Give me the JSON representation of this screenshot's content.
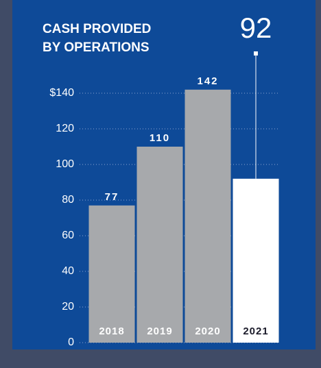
{
  "chart_data": {
    "type": "bar",
    "title": [
      "CASH PROVIDED",
      "BY OPERATIONS"
    ],
    "categories": [
      "2018",
      "2019",
      "2020",
      "2021"
    ],
    "values": [
      77,
      110,
      142,
      92
    ],
    "colors": [
      "#a7a9ac",
      "#a7a9ac",
      "#a7a9ac",
      "#ffffff"
    ],
    "ylim": [
      0,
      150
    ],
    "yticks": [
      0,
      20,
      40,
      60,
      80,
      100,
      120,
      {
        "value": 140,
        "label": "$140"
      }
    ],
    "grid": true
  }
}
